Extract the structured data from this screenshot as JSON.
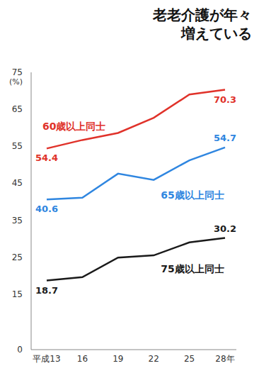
{
  "chart_data": {
    "type": "line",
    "title": "老老介護が年々増えている",
    "y_label": "(%)",
    "categories": [
      "平成13",
      "16",
      "19",
      "22",
      "25",
      "28年"
    ],
    "series": [
      {
        "name": "60歳以上同士",
        "color": "#e0322a",
        "values": [
          54.4,
          56.7,
          58.6,
          62.7,
          69.0,
          70.3
        ]
      },
      {
        "name": "65歳以上同士",
        "color": "#2f86e0",
        "values": [
          40.6,
          41.1,
          47.6,
          45.9,
          51.2,
          54.7
        ]
      },
      {
        "name": "75歳以上同士",
        "color": "#1a1a1a",
        "values": [
          18.7,
          19.6,
          24.9,
          25.5,
          29.0,
          30.2
        ]
      }
    ],
    "ylim": [
      0,
      75
    ],
    "yticks": [
      0,
      15,
      25,
      35,
      45,
      55,
      65,
      75
    ],
    "grid": false,
    "tick_labels": true
  }
}
